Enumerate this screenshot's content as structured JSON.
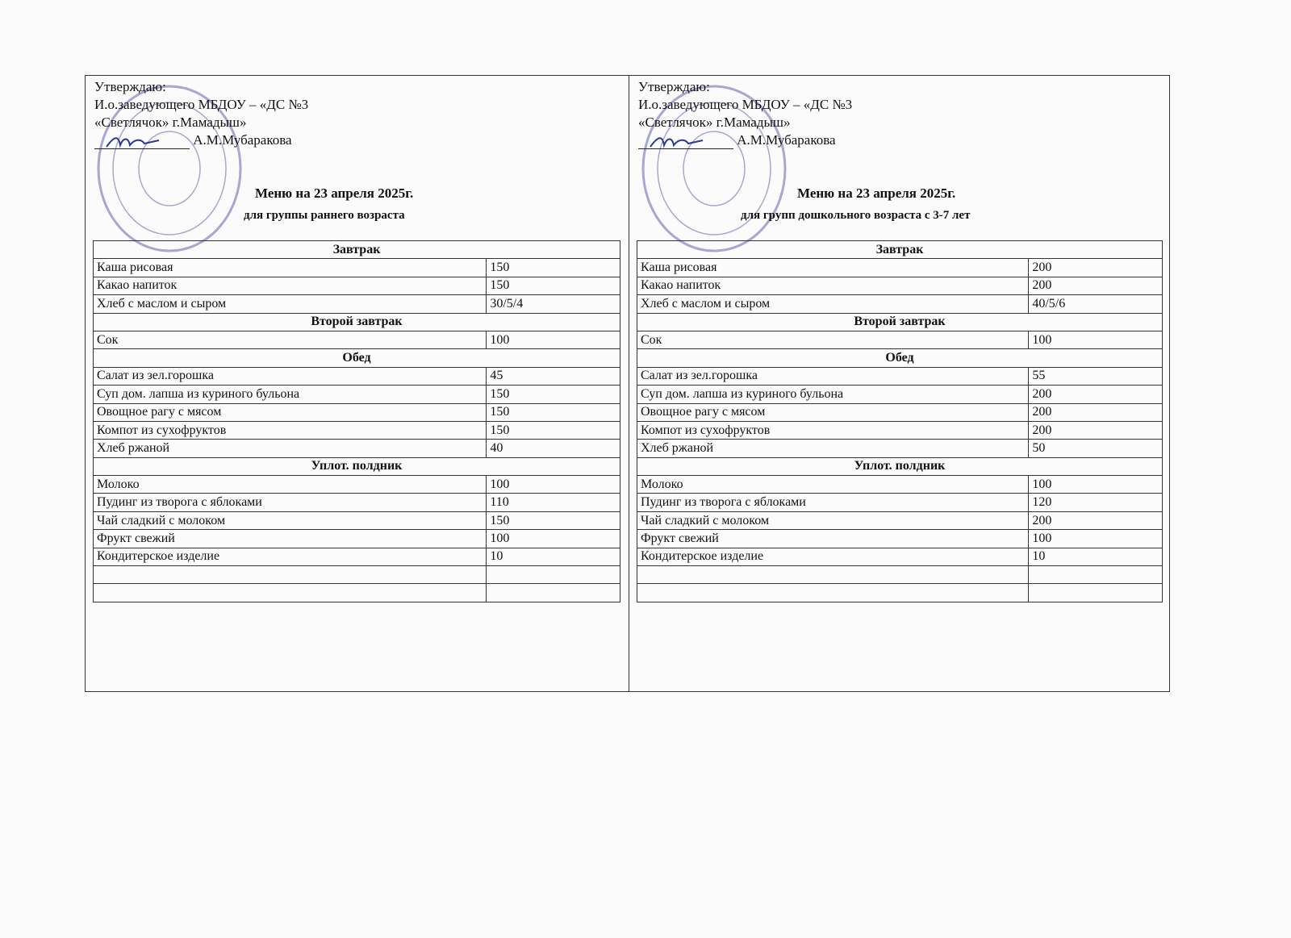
{
  "columns": [
    {
      "approve": [
        "Утверждаю:",
        "И.о.заведующего МБДОУ – «ДС №3",
        "«Светлячок» г.Мамадыш»"
      ],
      "signer": "А.М.Мубаракова",
      "title": "Меню на 23 апреля 2025г.",
      "subtitle": "для группы раннего возраста",
      "rows": [
        {
          "section": "Завтрак"
        },
        {
          "dish": "Каша рисовая",
          "amount": "150"
        },
        {
          "dish": "Какао напиток",
          "amount": "150"
        },
        {
          "dish": "Хлеб с маслом и сыром",
          "amount": "30/5/4"
        },
        {
          "section": "Второй завтрак"
        },
        {
          "dish": "Сок",
          "amount": "100"
        },
        {
          "section": "Обед"
        },
        {
          "dish": "Салат из зел.горошка",
          "amount": "45"
        },
        {
          "dish": "Суп дом. лапша из куриного бульона",
          "amount": "150"
        },
        {
          "dish": "Овощное рагу с мясом",
          "amount": "150"
        },
        {
          "dish": "Компот из сухофруктов",
          "amount": "150"
        },
        {
          "dish": "Хлеб ржаной",
          "amount": "40"
        },
        {
          "section": "Уплот. полдник"
        },
        {
          "dish": "Молоко",
          "amount": "100"
        },
        {
          "dish": "Пудинг из творога с яблоками",
          "amount": "110"
        },
        {
          "dish": "Чай сладкий с молоком",
          "amount": "150"
        },
        {
          "dish": "Фрукт свежий",
          "amount": "100"
        },
        {
          "dish": "Кондитерское изделие",
          "amount": "10"
        },
        {
          "dish": "",
          "amount": ""
        },
        {
          "dish": "",
          "amount": ""
        }
      ]
    },
    {
      "approve": [
        "Утверждаю:",
        "И.о.заведующего МБДОУ – «ДС №3",
        "«Светлячок» г.Мамадыш»"
      ],
      "signer": "А.М.Мубаракова",
      "title": "Меню на  23 апреля 2025г.",
      "subtitle": "для групп дошкольного возраста с 3-7 лет",
      "rows": [
        {
          "section": "Завтрак"
        },
        {
          "dish": "Каша рисовая",
          "amount": "200"
        },
        {
          "dish": "Какао напиток",
          "amount": "200"
        },
        {
          "dish": "Хлеб с маслом и сыром",
          "amount": "40/5/6"
        },
        {
          "section": "Второй завтрак"
        },
        {
          "dish": "Сок",
          "amount": "100"
        },
        {
          "section": "Обед"
        },
        {
          "dish": "Салат из зел.горошка",
          "amount": "55"
        },
        {
          "dish": "Суп дом. лапша из куриного бульона",
          "amount": "200"
        },
        {
          "dish": "Овощное рагу с мясом",
          "amount": "200"
        },
        {
          "dish": "Компот из сухофруктов",
          "amount": "200"
        },
        {
          "dish": "Хлеб ржаной",
          "amount": "50"
        },
        {
          "section": "Уплот. полдник"
        },
        {
          "dish": "Молоко",
          "amount": "100"
        },
        {
          "dish": "Пудинг из творога с яблоками",
          "amount": "120"
        },
        {
          "dish": "Чай сладкий с молоком",
          "amount": "200"
        },
        {
          "dish": "Фрукт свежий",
          "amount": "100"
        },
        {
          "dish": "Кондитерское изделие",
          "amount": "10"
        },
        {
          "dish": "",
          "amount": ""
        },
        {
          "dish": "",
          "amount": ""
        }
      ]
    }
  ],
  "stamp_color": "#6a5fb0"
}
